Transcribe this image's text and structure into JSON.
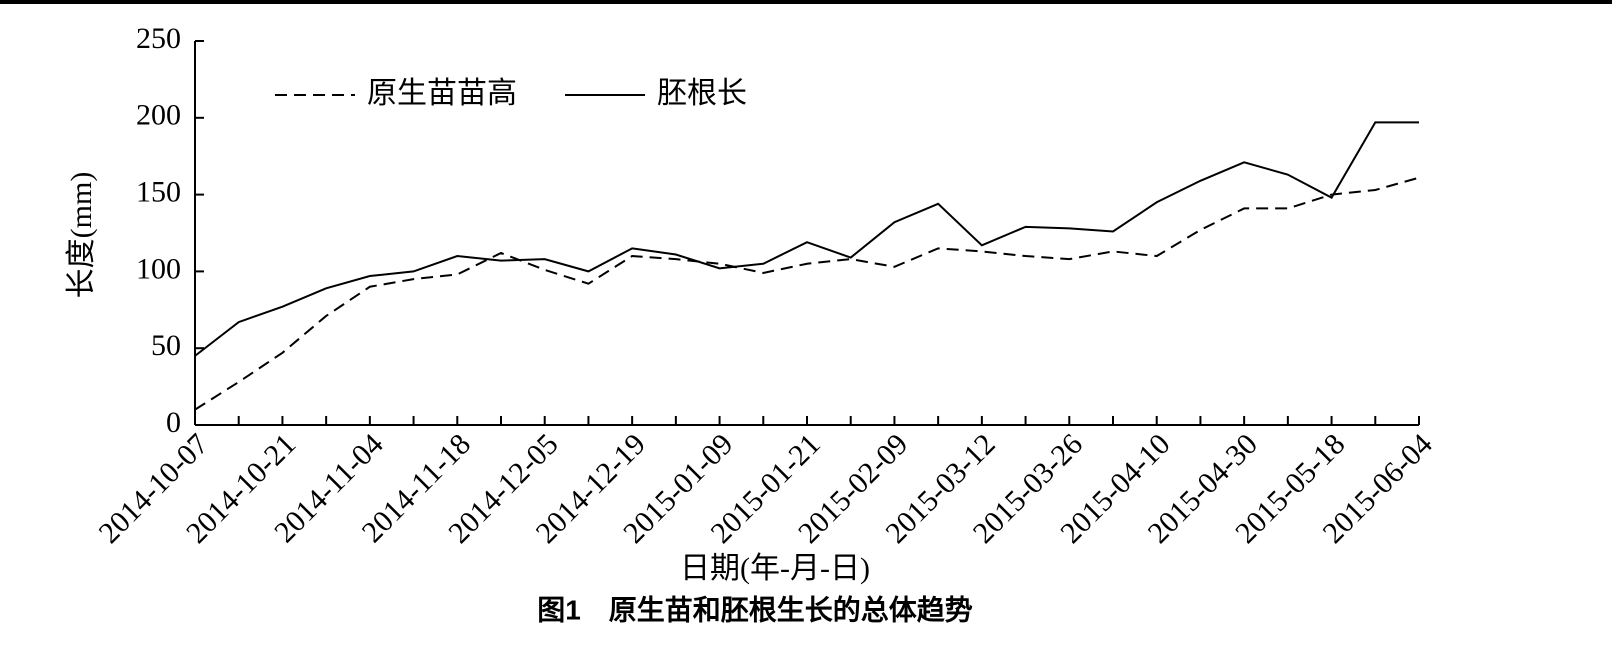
{
  "chart_data": {
    "type": "line",
    "title": "图1　原生苗和胚根生长的总体趋势",
    "x_label": "日期(年-月-日)",
    "y_label": "长度(mm)",
    "categories": [
      "2014-10-07",
      null,
      "2014-10-21",
      null,
      "2014-11-04",
      null,
      "2014-11-18",
      null,
      "2014-12-05",
      null,
      "2014-12-19",
      null,
      "2015-01-09",
      null,
      "2015-01-21",
      null,
      "2015-02-09",
      null,
      "2015-03-12",
      null,
      "2015-03-26",
      null,
      "2015-04-10",
      null,
      "2015-04-30",
      null,
      "2015-05-18",
      null,
      "2015-06-04"
    ],
    "series": [
      {
        "name": "原生苗苗高",
        "color": "#000000",
        "linestyle": "dashed",
        "values": [
          10,
          28,
          47,
          71,
          90,
          95,
          98,
          112,
          101,
          92,
          110,
          108,
          105,
          99,
          105,
          108,
          103,
          115,
          113,
          110,
          108,
          113,
          110,
          127,
          141,
          141,
          150,
          153,
          161
        ]
      },
      {
        "name": "胚根长",
        "color": "#000000",
        "linestyle": "solid",
        "values": [
          45,
          67,
          77,
          89,
          97,
          100,
          110,
          107,
          108,
          100,
          115,
          111,
          102,
          105,
          119,
          109,
          132,
          144,
          117,
          129,
          128,
          126,
          145,
          159,
          171,
          163,
          148,
          197,
          197
        ]
      }
    ],
    "ylim": [
      0,
      250
    ],
    "yticks": [
      0,
      50,
      100,
      150,
      200,
      250
    ],
    "grid": false,
    "legend": "upper left"
  }
}
